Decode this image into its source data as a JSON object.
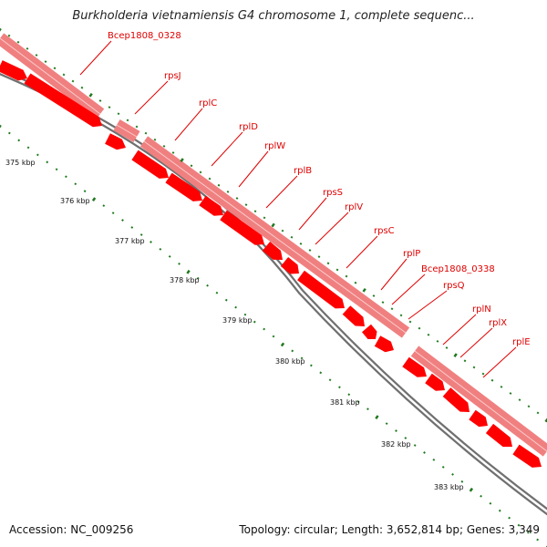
{
  "title": "Burkholderia vietnamiensis G4 chromosome 1, complete sequenc...",
  "footer": {
    "accession": "Accession: NC_009256",
    "summary": "Topology: circular; Length: 3,652,814 bp; Genes: 3,349"
  },
  "colors": {
    "gene_arrow": "#ff0000",
    "gene_band": "#f08080",
    "label": "#e00000",
    "tick": "#1f7a1f",
    "backbone": "#808080"
  },
  "genes": [
    "Bcep1808_0328",
    "rpsJ",
    "rplC",
    "rplD",
    "rplW",
    "rplB",
    "rpsS",
    "rplV",
    "rpsC",
    "rplP",
    "Bcep1808_0338",
    "rpsQ",
    "rplN",
    "rplX",
    "rplE"
  ],
  "scale_ticks": [
    "375 kbp",
    "376 kbp",
    "377 kbp",
    "378 kbp",
    "379 kbp",
    "380 kbp",
    "381 kbp",
    "382 kbp",
    "383 kbp"
  ]
}
